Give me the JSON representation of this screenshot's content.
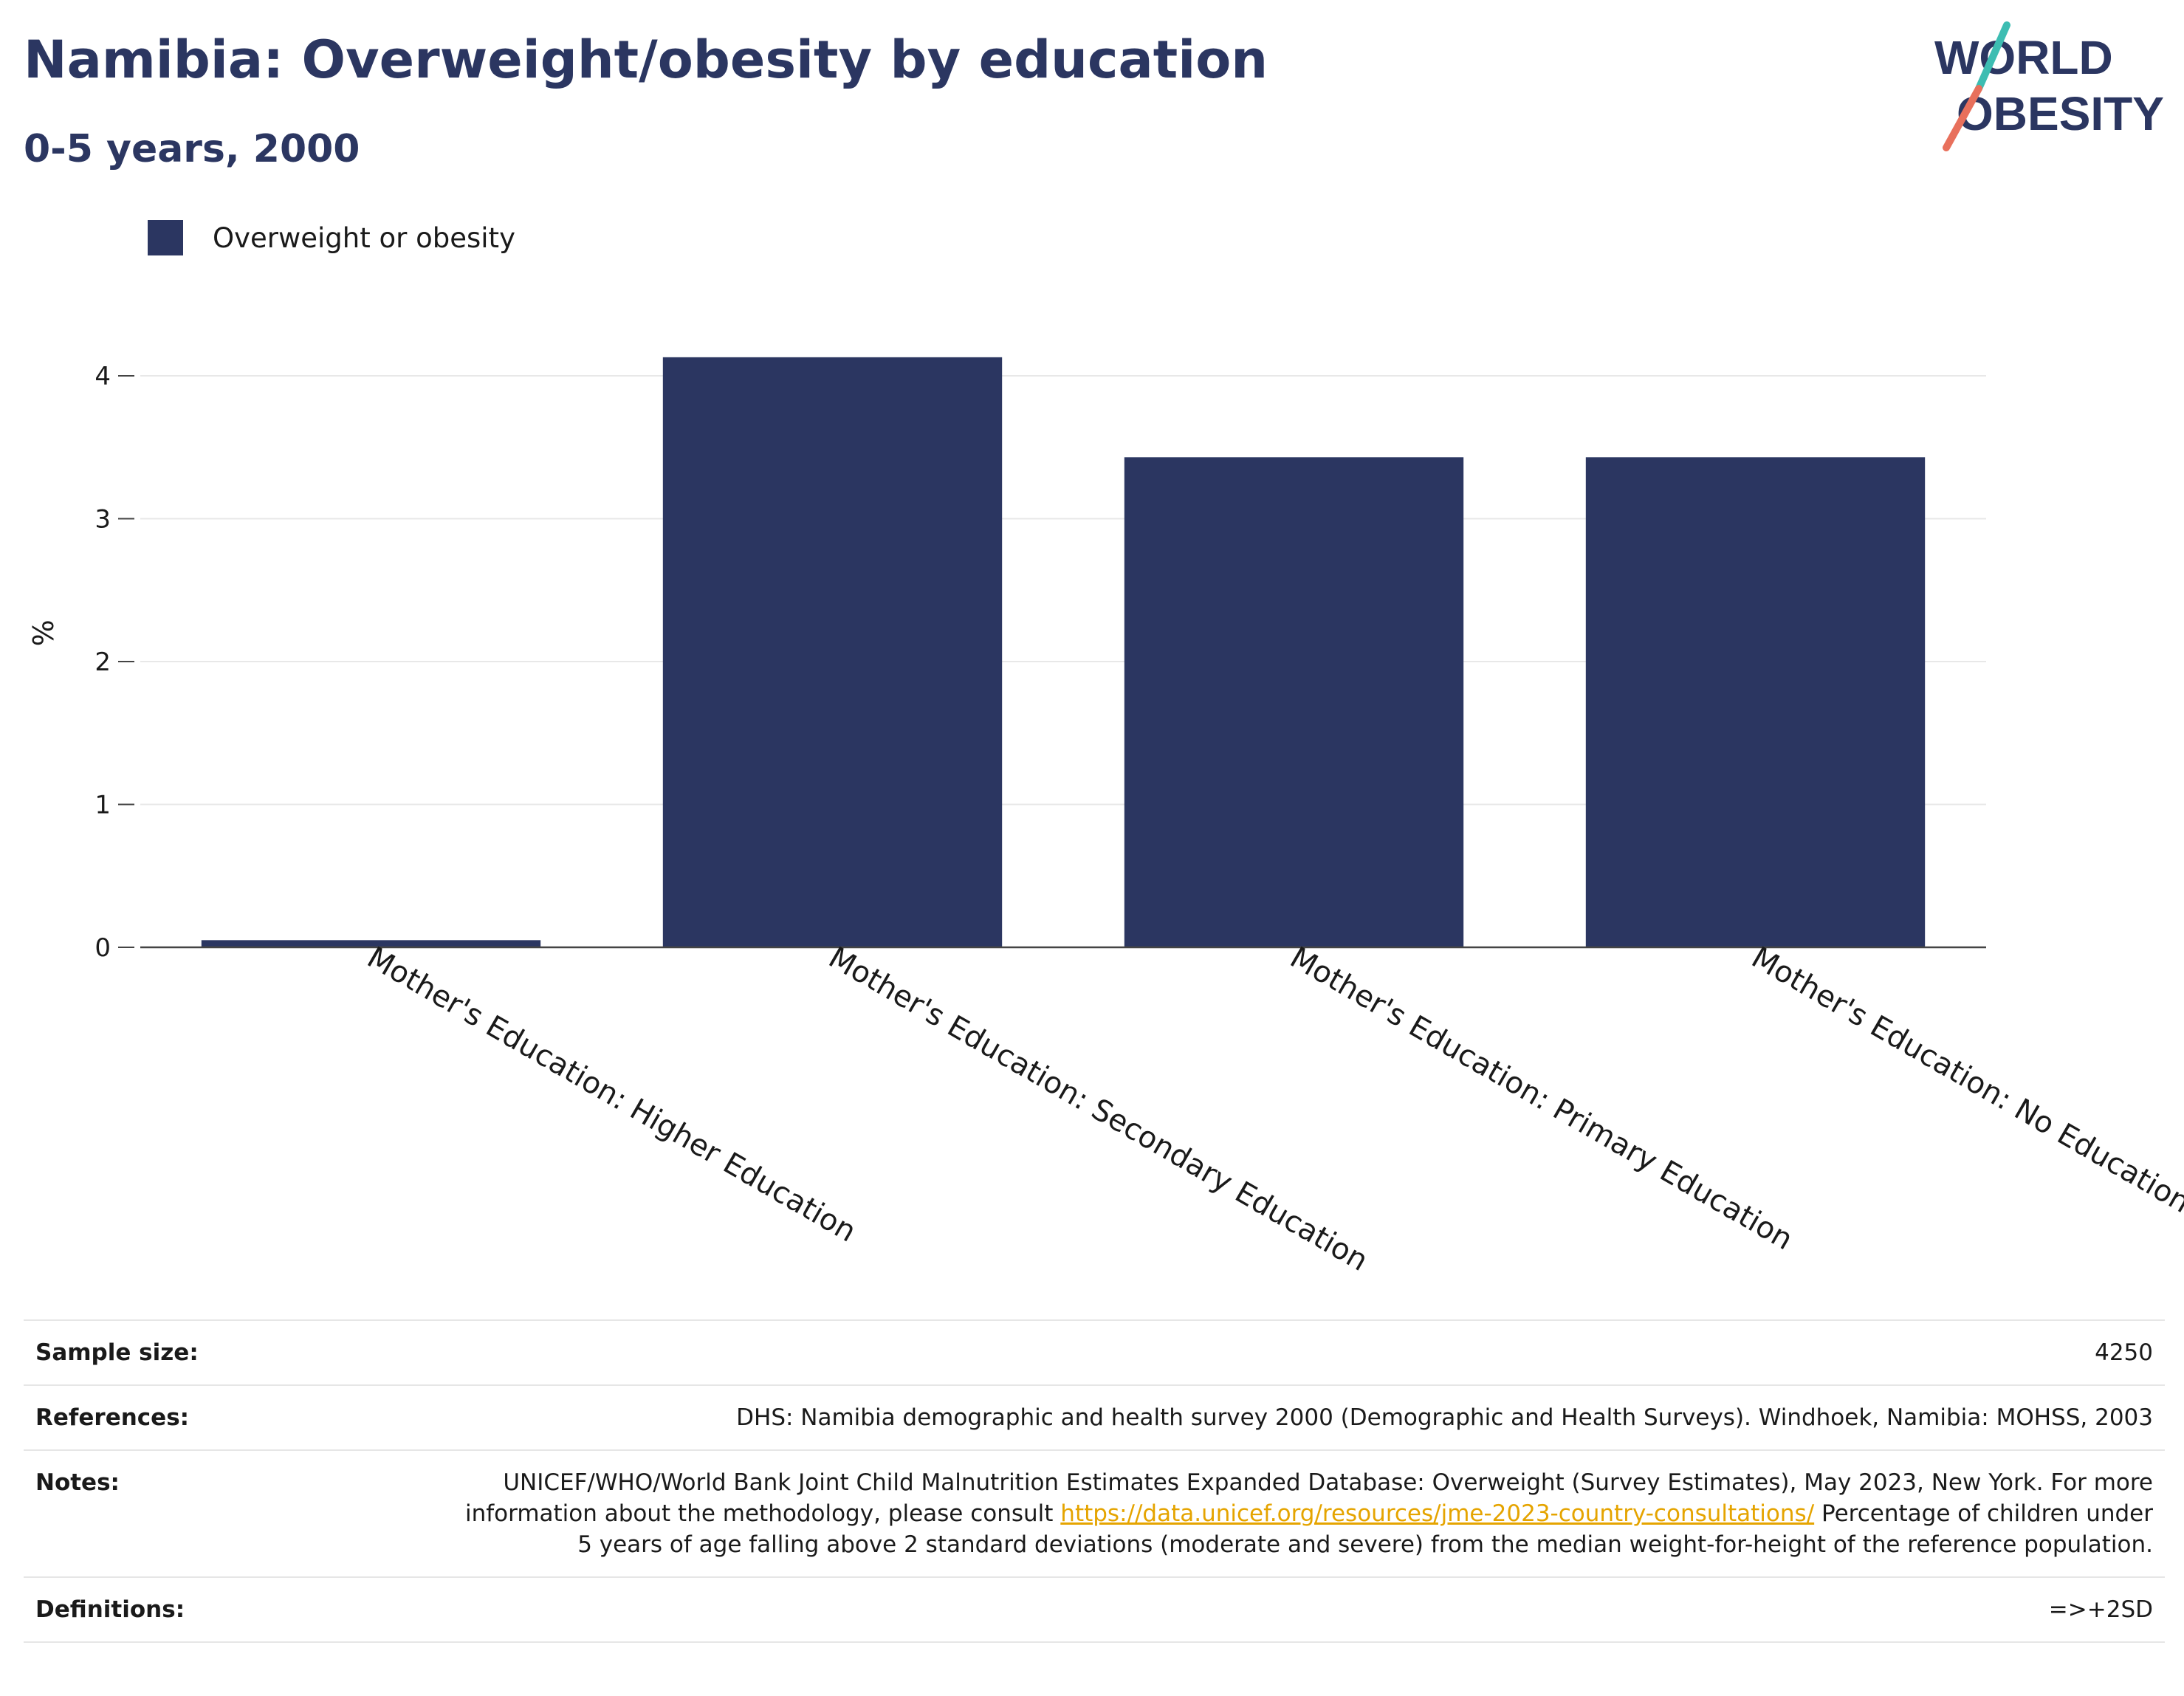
{
  "header": {
    "title": "Namibia: Overweight/obesity by education",
    "subtitle": "0-5 years, 2000"
  },
  "logo": {
    "line1": "WORLD",
    "line2": "OBESITY",
    "colors": {
      "text": "#2b3661",
      "slash_top": "#3dbdb2",
      "slash_bottom": "#e8705c"
    }
  },
  "legend": {
    "label": "Overweight or obesity",
    "color": "#2b3661"
  },
  "chart_data": {
    "type": "bar",
    "categories": [
      "Mother's Education: Higher Education",
      "Mother's Education: Secondary Education",
      "Mother's Education: Primary Education",
      "Mother's Education: No Education"
    ],
    "series": [
      {
        "name": "Overweight or obesity",
        "values": [
          0.05,
          4.13,
          3.43,
          3.43
        ],
        "color": "#2b3661"
      }
    ],
    "xlabel": "",
    "ylabel": "%",
    "ylim": [
      0,
      4.4
    ],
    "yticks": [
      0,
      1,
      2,
      3,
      4
    ],
    "grid": true,
    "legend_position": "top-left"
  },
  "meta": {
    "sample_size_label": "Sample size:",
    "sample_size_value": "4250",
    "references_label": "References:",
    "references_value": "DHS: Namibia demographic and health survey 2000 (Demographic and Health Surveys). Windhoek, Namibia: MOHSS, 2003",
    "notes_label": "Notes:",
    "notes_text_before": "UNICEF/WHO/World Bank Joint Child Malnutrition Estimates Expanded Database: Overweight (Survey Estimates), May 2023, New York. For more information about the methodology, please consult ",
    "notes_link": "https://data.unicef.org/resources/jme-2023-country-consultations/",
    "notes_text_after": " Percentage of children under 5 years of age falling above 2 standard deviations (moderate and severe) from the median weight-for-height of the reference population.",
    "definitions_label": "Definitions:",
    "definitions_value": "=>+2SD"
  }
}
